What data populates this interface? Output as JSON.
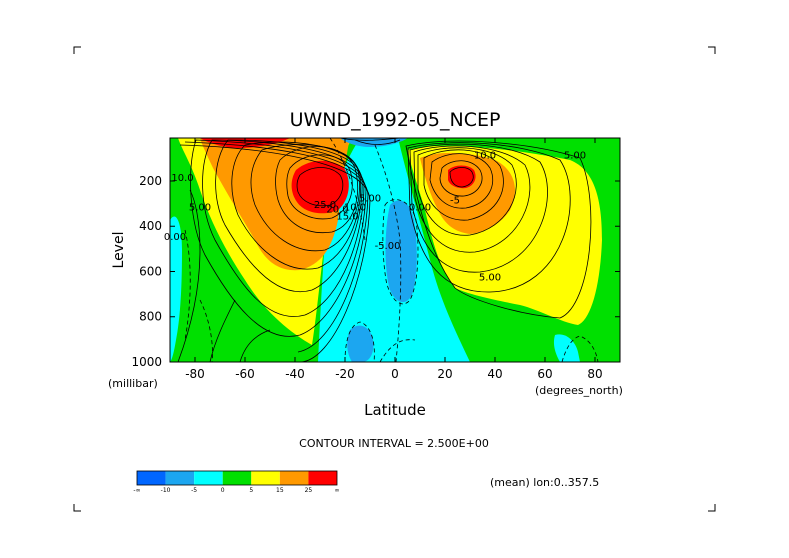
{
  "chart_data": {
    "type": "heatmap",
    "title": "UWND_1992-05_NCEP",
    "xlabel": "Latitude",
    "ylabel": "Level",
    "x_unit": "(degrees_north)",
    "y_unit": "(millibar)",
    "xlim": [
      -90,
      90
    ],
    "ylim": [
      1000,
      10
    ],
    "x_ticks": [
      "-80",
      "-60",
      "-40",
      "-20",
      "0",
      "20",
      "40",
      "60",
      "80"
    ],
    "x_tick_values": [
      -80,
      -60,
      -40,
      -20,
      0,
      20,
      40,
      60,
      80
    ],
    "y_ticks": [
      "200",
      "400",
      "600",
      "800",
      "1000"
    ],
    "y_tick_values": [
      200,
      400,
      600,
      800,
      1000
    ],
    "contour_labels": [
      {
        "text": "10.0",
        "x": -85,
        "y": 200
      },
      {
        "text": "5.00",
        "x": -78,
        "y": 330
      },
      {
        "text": "0.00",
        "x": -88,
        "y": 460
      },
      {
        "text": "25.0",
        "x": -28,
        "y": 320
      },
      {
        "text": "20.0",
        "x": -23,
        "y": 340
      },
      {
        "text": "15.0",
        "x": -19,
        "y": 370
      },
      {
        "text": "10.0",
        "x": -16,
        "y": 330
      },
      {
        "text": "5.00",
        "x": -10,
        "y": 290
      },
      {
        "text": "0.00",
        "x": 10,
        "y": 330
      },
      {
        "text": "-5.00",
        "x": -3,
        "y": 500
      },
      {
        "text": "10.0",
        "x": 36,
        "y": 100
      },
      {
        "text": "5.00",
        "x": 72,
        "y": 100
      },
      {
        "text": "-5",
        "x": 24,
        "y": 300
      },
      {
        "text": "5.00",
        "x": 38,
        "y": 640
      }
    ],
    "legend": {
      "boundaries": [
        "-∞",
        "-10",
        "-5",
        "0",
        "5",
        "15",
        "25",
        "∞"
      ],
      "bin_colors": [
        "#0066ff",
        "#1ca6f0",
        "#00ffff",
        "#00e000",
        "#ffff00",
        "#ff9900",
        "#ff0000"
      ]
    },
    "subtitle": "CONTOUR INTERVAL = 2.500E+00",
    "annotation": "(mean) lon:0..357.5"
  },
  "colors": {
    "deep_blue": "#0066ff",
    "blue": "#1ca6f0",
    "cyan": "#00ffff",
    "green": "#00e000",
    "yellow": "#ffff00",
    "orange": "#ff9900",
    "red": "#ff0000"
  }
}
